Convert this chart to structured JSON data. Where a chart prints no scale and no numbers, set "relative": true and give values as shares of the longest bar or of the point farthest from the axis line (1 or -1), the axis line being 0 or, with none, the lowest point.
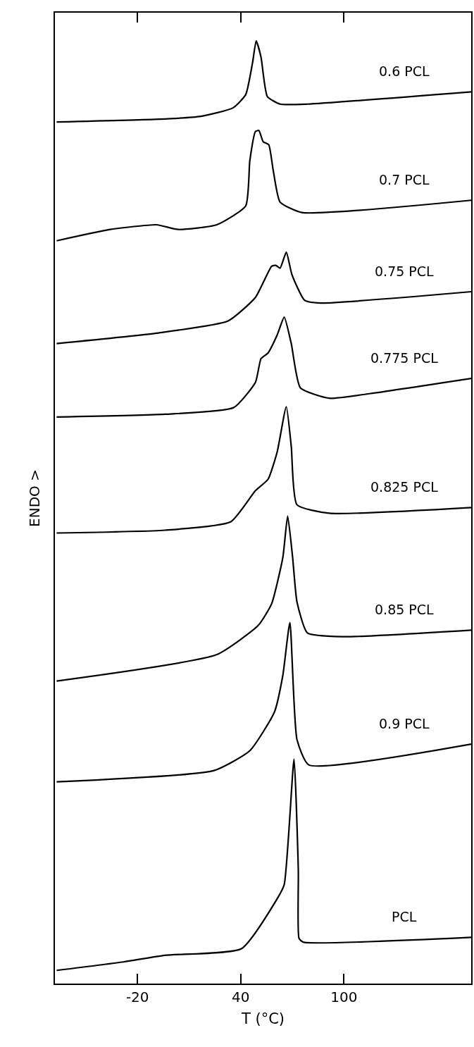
{
  "chart_data": {
    "type": "line",
    "relative": true,
    "xlabel": "T (°C)",
    "ylabel": "ENDO >",
    "xlim": [
      -68,
      174
    ],
    "xticks": [
      -20,
      40,
      100
    ],
    "grid": false,
    "legend": false,
    "marker": "none",
    "line_style": "solid",
    "series": [
      {
        "name": "0.6 PCL",
        "color": "#000000",
        "x": [
          -67,
          -7.3,
          16.7,
          35.5,
          42.9,
          46.9,
          49.0,
          51.8,
          55.5,
          62.9,
          78.8,
          174
        ],
        "values": [
          0.914,
          0.917,
          0.92,
          0.929,
          0.943,
          0.977,
          1.0,
          0.983,
          0.941,
          0.933,
          0.933,
          0.946
        ]
      },
      {
        "name": "0.7 PCL",
        "color": "#000000",
        "x": [
          -67,
          -35.9,
          -9.0,
          3.7,
          26.1,
          42.9,
          45.3,
          48.6,
          50.6,
          53.1,
          56.3,
          58.8,
          62.9,
          75.5,
          174
        ],
        "values": [
          0.788,
          0.8,
          0.805,
          0.8,
          0.805,
          0.825,
          0.873,
          0.904,
          0.905,
          0.893,
          0.89,
          0.864,
          0.829,
          0.818,
          0.831
        ]
      },
      {
        "name": "0.75 PCL",
        "color": "#000000",
        "x": [
          -67,
          -9.0,
          32.7,
          48.6,
          58.0,
          60.4,
          62.9,
          66.5,
          69.8,
          77.1,
          86.5,
          174
        ],
        "values": [
          0.679,
          0.69,
          0.703,
          0.728,
          0.761,
          0.762,
          0.759,
          0.776,
          0.752,
          0.725,
          0.722,
          0.734
        ]
      },
      {
        "name": "0.775 PCL",
        "color": "#000000",
        "x": [
          -67,
          -4.1,
          35.9,
          48.6,
          51.8,
          55.9,
          61.2,
          65.3,
          69.4,
          74.7,
          91.4,
          115.5,
          174
        ],
        "values": [
          0.601,
          0.604,
          0.611,
          0.638,
          0.663,
          0.669,
          0.688,
          0.707,
          0.679,
          0.632,
          0.621,
          0.626,
          0.642
        ]
      },
      {
        "name": "0.825 PCL",
        "color": "#000000",
        "x": [
          -67,
          -4.1,
          34.3,
          48.6,
          55.9,
          61.2,
          66.5,
          69.4,
          72.7,
          91.4,
          174
        ],
        "values": [
          0.478,
          0.481,
          0.49,
          0.523,
          0.535,
          0.564,
          0.612,
          0.57,
          0.508,
          0.499,
          0.505
        ]
      },
      {
        "name": "0.85 PCL",
        "color": "#000000",
        "x": [
          -67,
          26.1,
          50.2,
          58.0,
          64.5,
          67.3,
          70.2,
          72.7,
          78.8,
          99.6,
          174
        ],
        "values": [
          0.321,
          0.349,
          0.38,
          0.403,
          0.452,
          0.496,
          0.452,
          0.405,
          0.372,
          0.368,
          0.375
        ]
      },
      {
        "name": "0.9 PCL",
        "color": "#000000",
        "x": [
          -67,
          24.5,
          45.3,
          59.6,
          64.5,
          68.6,
          72.7,
          79.6,
          174
        ],
        "values": [
          0.214,
          0.226,
          0.247,
          0.288,
          0.327,
          0.383,
          0.259,
          0.232,
          0.254
        ]
      },
      {
        "name": "PCL",
        "color": "#000000",
        "x": [
          -67,
          -28.2,
          -4.1,
          40.4,
          61.2,
          65.3,
          71.0,
          73.5,
          73.9,
          76.3,
          174
        ],
        "values": [
          0.014,
          0.023,
          0.03,
          0.037,
          0.09,
          0.105,
          0.238,
          0.12,
          0.048,
          0.044,
          0.049
        ]
      }
    ]
  }
}
